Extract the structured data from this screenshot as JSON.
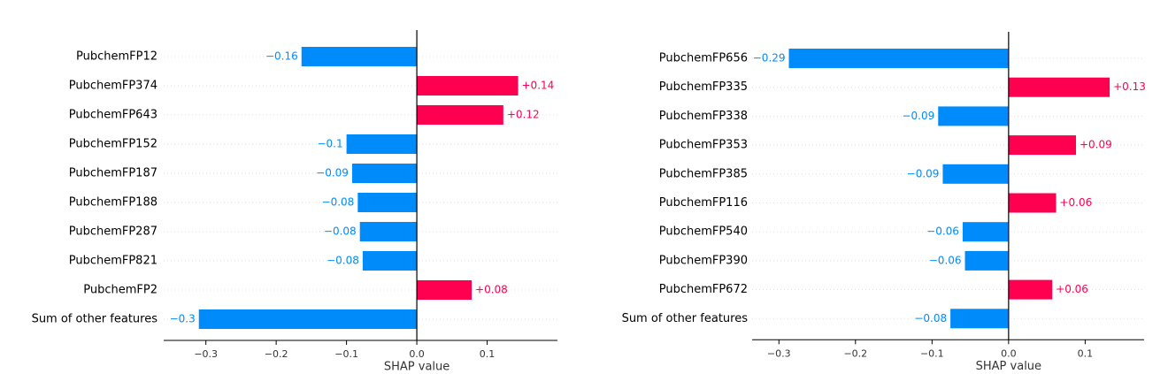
{
  "chart_data": [
    {
      "type": "bar",
      "xlabel": "SHAP value",
      "categories": [
        "PubchemFP12",
        "PubchemFP374",
        "PubchemFP643",
        "PubchemFP152",
        "PubchemFP187",
        "PubchemFP188",
        "PubchemFP287",
        "PubchemFP821",
        "PubchemFP2",
        "Sum of other features"
      ],
      "values": [
        -0.164,
        0.144,
        0.123,
        -0.1,
        -0.092,
        -0.084,
        -0.081,
        -0.077,
        0.078,
        -0.31
      ],
      "value_labels": [
        "−0.16",
        "+0.14",
        "+0.12",
        "−0.1",
        "−0.09",
        "−0.08",
        "−0.08",
        "−0.08",
        "+0.08",
        "−0.3"
      ],
      "positive_color": "#ff0051",
      "negative_color": "#008bfb",
      "xlim": [
        -0.36,
        0.2
      ],
      "xticks": [
        {
          "value": -0.3,
          "label": "−0.3"
        },
        {
          "value": -0.2,
          "label": "−0.2"
        },
        {
          "value": -0.1,
          "label": "−0.1"
        },
        {
          "value": 0,
          "label": "0.0"
        },
        0.1
      ]
    },
    {
      "type": "bar",
      "xlabel": "SHAP value",
      "categories": [
        "PubchemFP656",
        "PubchemFP335",
        "PubchemFP338",
        "PubchemFP353",
        "PubchemFP385",
        "PubchemFP116",
        "PubchemFP540",
        "PubchemFP390",
        "PubchemFP672",
        "Sum of other features"
      ],
      "values": [
        -0.287,
        0.132,
        -0.092,
        0.088,
        -0.086,
        0.062,
        -0.06,
        -0.057,
        0.057,
        -0.076
      ],
      "value_labels": [
        "−0.29",
        "+0.13",
        "−0.09",
        "+0.09",
        "−0.09",
        "+0.06",
        "−0.06",
        "−0.06",
        "+0.06",
        "−0.08"
      ],
      "positive_color": "#ff0051",
      "negative_color": "#008bfb",
      "xlim": [
        -0.335,
        0.177
      ],
      "xticks": [
        {
          "value": -0.3,
          "label": "−0.3"
        },
        {
          "value": -0.2,
          "label": "−0.2"
        },
        {
          "value": -0.1,
          "label": "−0.1"
        },
        {
          "value": 0,
          "label": "0.0"
        },
        0.1
      ]
    }
  ]
}
